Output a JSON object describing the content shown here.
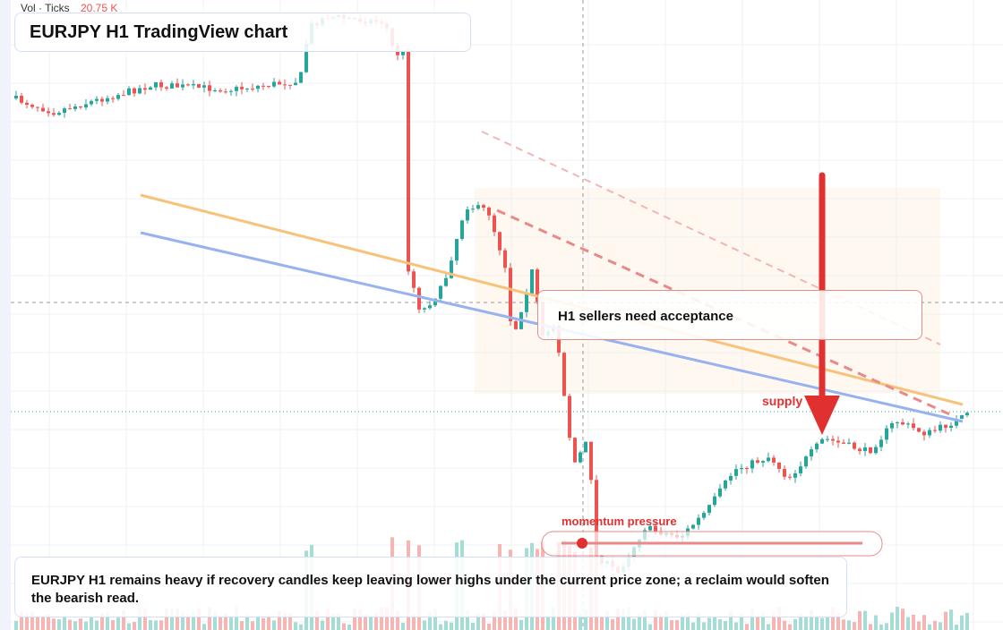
{
  "header": {
    "volume_label": "Vol · Ticks",
    "volume_value": "20.75 K",
    "title": "EURJPY H1 TradingView chart"
  },
  "annotations": {
    "callout": "H1 sellers need acceptance",
    "supply": "supply",
    "momentum": "momentum pressure"
  },
  "note": "EURJPY H1 remains heavy if recovery candles keep leaving lower highs under the current price zone; a reclaim would soften the bearish read."
}
